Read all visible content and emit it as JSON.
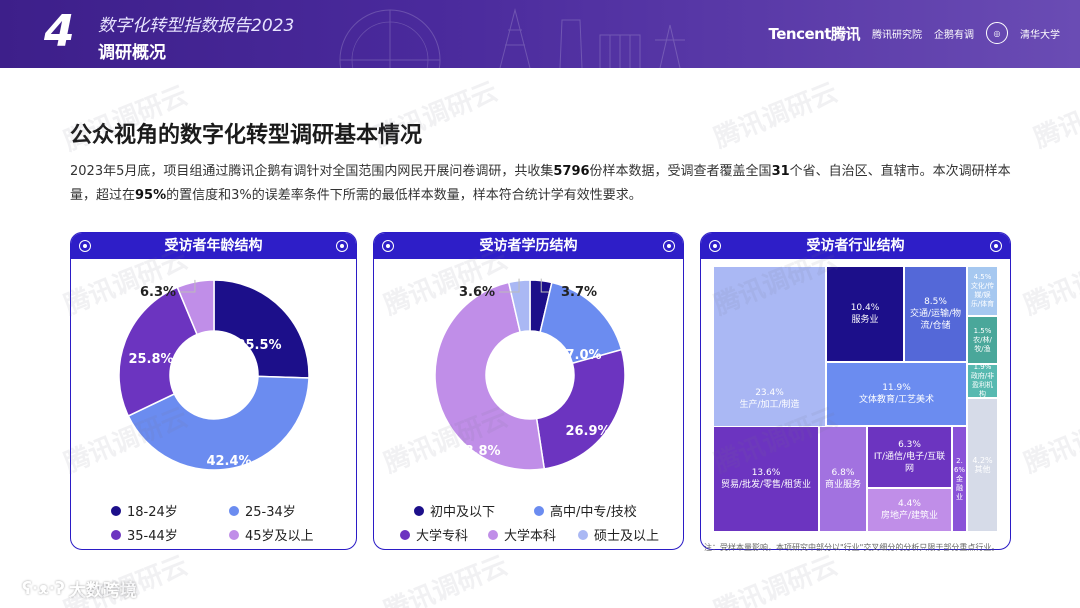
{
  "header": {
    "number": "4",
    "report_title": "数字化转型指数报告2023",
    "section": "调研概况",
    "logo_tencent": "Tencent腾讯",
    "logo_institute": "腾讯研究院",
    "logo_qiyoudiao": "企鹅有调",
    "logo_tsinghua": "清华大学"
  },
  "watermark": "腾讯调研云",
  "title": "公众视角的数字化转型调研基本情况",
  "intro": {
    "p1": "2023年5月底，项目组通过腾讯企鹅有调针对全国范围内网民开展问卷调研，共收集",
    "n_samples": "5796",
    "p2": "份样本数据，受调查者覆盖全国",
    "n_provinces": "31",
    "p3": "个省、自治区、直辖市。本次调研样本量，超过在",
    "confidence": "95%",
    "p4": "的置信度和3%的误差率条件下所需的最低样本数量，样本符合统计学有效性要求。"
  },
  "colors": {
    "primary": "#2e1ec8",
    "navy": "#1c0f8a",
    "blue": "#6b8cf0",
    "purple": "#6c34c0",
    "lavender": "#c08ee8",
    "light": "#aab8f4"
  },
  "chart_data": [
    {
      "type": "pie",
      "title": "受访者年龄结构",
      "categories": [
        "18-24岁",
        "25-34岁",
        "35-44岁",
        "45岁及以上"
      ],
      "values": [
        25.5,
        42.4,
        25.8,
        6.3
      ],
      "labels": [
        "25.5%",
        "42.4%",
        "25.8%",
        "6.3%"
      ],
      "colors": [
        "#1c0f8a",
        "#6b8cf0",
        "#6c34c0",
        "#c08ee8"
      ]
    },
    {
      "type": "pie",
      "title": "受访者学历结构",
      "categories": [
        "初中及以下",
        "高中/中专/技校",
        "大学专科",
        "大学本科",
        "硕士及以上"
      ],
      "values": [
        3.7,
        17.0,
        26.9,
        48.8,
        3.6
      ],
      "labels": [
        "3.7%",
        "17.0%",
        "26.9%",
        "48.8%",
        "3.6%"
      ],
      "colors": [
        "#1c0f8a",
        "#6b8cf0",
        "#6c34c0",
        "#c08ee8",
        "#aab8f4"
      ]
    },
    {
      "type": "treemap",
      "title": "受访者行业结构",
      "categories": [
        "生产/加工/制造",
        "服务业",
        "交通/运输/物流/仓储",
        "文体教育/工艺美术",
        "贸易/批发/零售/租赁业",
        "商业服务",
        "IT/通信/电子/互联网",
        "房地产/建筑业",
        "金融业",
        "文化/传媒/娱乐/体育",
        "农/林/牧/渔",
        "政府/非盈利机构",
        "其他"
      ],
      "values": [
        23.4,
        10.4,
        8.5,
        11.9,
        13.6,
        6.8,
        6.3,
        4.4,
        2.6,
        4.5,
        1.5,
        1.9,
        4.2
      ],
      "cells": [
        {
          "pct": "23.4%",
          "name": "生产/加工/制造"
        },
        {
          "pct": "10.4%",
          "name": "服务业"
        },
        {
          "pct": "8.5%",
          "name": "交通/运输/物流/仓储"
        },
        {
          "pct": "11.9%",
          "name": "文体教育/工艺美术"
        },
        {
          "pct": "13.6%",
          "name": "贸易/批发/零售/租赁业"
        },
        {
          "pct": "6.8%",
          "name": "商业服务"
        },
        {
          "pct": "6.3%",
          "name": "IT/通信/电子/互联网"
        },
        {
          "pct": "4.4%",
          "name": "房地产/建筑业"
        },
        {
          "pct": "2.6%",
          "name": "金融业"
        },
        {
          "pct": "4.5%",
          "name": "文化/传媒/娱乐/体育"
        },
        {
          "pct": "1.5%",
          "name": "农/林/牧/渔"
        },
        {
          "pct": "1.9%",
          "name": "政府/非盈利机构"
        },
        {
          "pct": "4.2%",
          "name": "其他"
        }
      ]
    }
  ],
  "note": "注：受样本量影响，本项研究中部分以\"行业\"交叉细分的分析只限于部分重点行业。",
  "bottom_logo": "大数跨境"
}
